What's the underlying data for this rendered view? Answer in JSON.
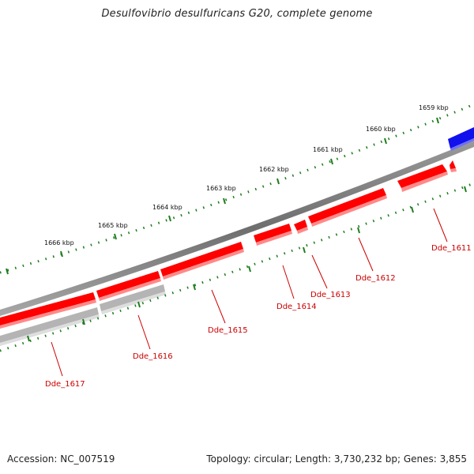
{
  "title": "Desulfovibrio desulfuricans G20, complete genome",
  "footer": {
    "accession": "Accession: NC_007519",
    "stats": "Topology: circular; Length: 3,730,232 bp; Genes: 3,855"
  },
  "ruler_labels": [
    "1659 kbp",
    "1660 kbp",
    "1661 kbp",
    "1662 kbp",
    "1663 kbp",
    "1664 kbp",
    "1665 kbp",
    "1666 kbp"
  ],
  "gene_labels": [
    "Dde_1611",
    "Dde_1612",
    "Dde_1613",
    "Dde_1614",
    "Dde_1615",
    "Dde_1616",
    "Dde_1617"
  ],
  "colors": {
    "gene_fill": "#ff0000",
    "gene_shadow": "#ff8a8a",
    "pseudo_fill": "#b4b4b4",
    "pseudo_shadow": "#dedede",
    "backbone": "#7a7a7a",
    "tick_green": "#1e7d1e",
    "other_gene": "#1111ee",
    "label_red": "#cc0000"
  }
}
